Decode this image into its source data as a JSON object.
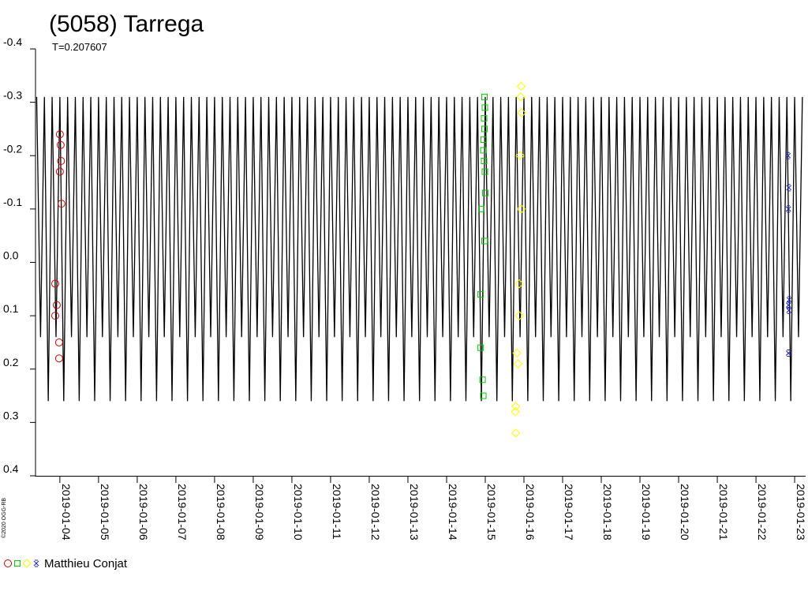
{
  "chart_data": {
    "type": "lightcurve",
    "title": "(5058) Tarrega",
    "subtitle": "T=0.207607",
    "credit": "©2020 OGG-RB",
    "observer": "Matthieu Conjat",
    "ylim": [
      -0.4,
      0.4
    ],
    "y_inverted": true,
    "yticks": [
      -0.4,
      -0.3,
      -0.2,
      -0.1,
      {
        "value": 0,
        "label": "0.0"
      },
      0.1,
      0.2,
      0.3,
      0.4
    ],
    "xlim": [
      3.37,
      23.27
    ],
    "xticks": [
      {
        "value": 4,
        "label": "2019-01-04"
      },
      {
        "value": 5,
        "label": "2019-01-05"
      },
      {
        "value": 6,
        "label": "2019-01-06"
      },
      {
        "value": 7,
        "label": "2019-01-07"
      },
      {
        "value": 8,
        "label": "2019-01-08"
      },
      {
        "value": 9,
        "label": "2019-01-09"
      },
      {
        "value": 10,
        "label": "2019-01-10"
      },
      {
        "value": 11,
        "label": "2019-01-11"
      },
      {
        "value": 12,
        "label": "2019-01-12"
      },
      {
        "value": 13,
        "label": "2019-01-13"
      },
      {
        "value": 14,
        "label": "2019-01-14"
      },
      {
        "value": 15,
        "label": "2019-01-15"
      },
      {
        "value": 16,
        "label": "2019-01-16"
      },
      {
        "value": 17,
        "label": "2019-01-17"
      },
      {
        "value": 18,
        "label": "2019-01-18"
      },
      {
        "value": 19,
        "label": "2019-01-19"
      },
      {
        "value": 20,
        "label": "2019-01-20"
      },
      {
        "value": 21,
        "label": "2019-01-21"
      },
      {
        "value": 22,
        "label": "2019-01-22"
      },
      {
        "value": 23,
        "label": "2019-01-23"
      }
    ],
    "curve": {
      "color": "#000000",
      "x": [
        3.4,
        3.5,
        3.6,
        3.7,
        3.8,
        3.9,
        4.0,
        4.1,
        4.2,
        4.3,
        4.4,
        4.5,
        4.6,
        4.7,
        4.8,
        4.9,
        5.0,
        5.1,
        5.2,
        5.3,
        5.4,
        5.5,
        5.6,
        5.7,
        5.8,
        5.9,
        6.0,
        6.1,
        6.2,
        6.3,
        6.4,
        6.5,
        6.6,
        6.7,
        6.8,
        6.9,
        7.0,
        7.1,
        7.2,
        7.3,
        7.4,
        7.5,
        7.6,
        7.7,
        7.8,
        7.9,
        8.0,
        8.1,
        8.2,
        8.3,
        8.4,
        8.5,
        8.6,
        8.7,
        8.8,
        8.9,
        9.0,
        9.1,
        9.2,
        9.3,
        9.4,
        9.5,
        9.6,
        9.7,
        9.8,
        9.9,
        10.0,
        10.1,
        10.2,
        10.3,
        10.4,
        10.5,
        10.6,
        10.7,
        10.8,
        10.9,
        11.0,
        11.1,
        11.2,
        11.3,
        11.4,
        11.5,
        11.6,
        11.7,
        11.8,
        11.9,
        12.0,
        12.1,
        12.2,
        12.3,
        12.4,
        12.5,
        12.6,
        12.7,
        12.8,
        12.9,
        13.0,
        13.1,
        13.2,
        13.3,
        13.4,
        13.5,
        13.6,
        13.7,
        13.8,
        13.9,
        14.0,
        14.1,
        14.2,
        14.3,
        14.4,
        14.5,
        14.6,
        14.7,
        14.8,
        14.9,
        15.0,
        15.1,
        15.2,
        15.3,
        15.4,
        15.5,
        15.6,
        15.7,
        15.8,
        15.9,
        16.0,
        16.1,
        16.2,
        16.3,
        16.4,
        16.5,
        16.6,
        16.7,
        16.8,
        16.9,
        17.0,
        17.1,
        17.2,
        17.3,
        17.4,
        17.5,
        17.6,
        17.7,
        17.8,
        17.9,
        18.0,
        18.1,
        18.2,
        18.3,
        18.4,
        18.5,
        18.6,
        18.7,
        18.8,
        18.9,
        19.0,
        19.1,
        19.2,
        19.3,
        19.4,
        19.5,
        19.6,
        19.7,
        19.8,
        19.9,
        20.0,
        20.1,
        20.2,
        20.3,
        20.4,
        20.5,
        20.6,
        20.7,
        20.8,
        20.9,
        21.0,
        21.1,
        21.2,
        21.3,
        21.4,
        21.5,
        21.6,
        21.7,
        21.8,
        21.9,
        22.0,
        22.1,
        22.2,
        22.3,
        22.4,
        22.5,
        22.6,
        22.7,
        22.8,
        22.9,
        23.0,
        23.1,
        23.2
      ],
      "values": [
        -0.31,
        0.14,
        -0.31,
        0.26,
        -0.31,
        0.14,
        -0.31,
        0.26,
        -0.31,
        0.14,
        -0.31,
        0.26,
        -0.31,
        0.14,
        -0.31,
        0.26,
        -0.31,
        0.14,
        -0.31,
        0.26,
        -0.31,
        0.14,
        -0.31,
        0.26,
        -0.31,
        0.14,
        -0.31,
        0.26,
        -0.31,
        0.14,
        -0.31,
        0.26,
        -0.31,
        0.14,
        -0.31,
        0.26,
        -0.31,
        0.14,
        -0.31,
        0.26,
        -0.31,
        0.14,
        -0.31,
        0.26,
        -0.31,
        0.14,
        -0.31,
        0.26,
        -0.31,
        0.14,
        -0.31,
        0.26,
        -0.31,
        0.14,
        -0.31,
        0.26,
        -0.31,
        0.14,
        -0.31,
        0.26,
        -0.31,
        0.14,
        -0.31,
        0.26,
        -0.31,
        0.14,
        -0.31,
        0.26,
        -0.31,
        0.14,
        -0.31,
        0.26,
        -0.31,
        0.14,
        -0.31,
        0.26,
        -0.31,
        0.14,
        -0.31,
        0.26,
        -0.31,
        0.14,
        -0.31,
        0.26,
        -0.31,
        0.14,
        -0.31,
        0.26,
        -0.31,
        0.14,
        -0.31,
        0.26,
        -0.31,
        0.14,
        -0.31,
        0.26,
        -0.31,
        0.14,
        -0.31,
        0.26,
        -0.31,
        0.14,
        -0.31,
        0.26,
        -0.31,
        0.14,
        -0.31,
        0.26,
        -0.31,
        0.14,
        -0.31,
        0.26,
        -0.31,
        0.14,
        -0.31,
        0.26,
        -0.31,
        0.14,
        -0.31,
        0.26,
        -0.31,
        0.14,
        -0.31,
        0.26,
        -0.31,
        0.14,
        -0.31,
        0.26,
        -0.31,
        0.14,
        -0.31,
        0.26,
        -0.31,
        0.14,
        -0.31,
        0.26,
        -0.31,
        0.14,
        -0.31,
        0.26,
        -0.31,
        0.14,
        -0.31,
        0.26,
        -0.31,
        0.14,
        -0.31,
        0.26,
        -0.31,
        0.14,
        -0.31,
        0.26,
        -0.31,
        0.14,
        -0.31,
        0.26,
        -0.31,
        0.14,
        -0.31,
        0.26,
        -0.31,
        0.14,
        -0.31,
        0.26,
        -0.31,
        0.14,
        -0.31,
        0.26,
        -0.31,
        0.14,
        -0.31,
        0.26,
        -0.31,
        0.14,
        -0.31,
        0.26,
        -0.31,
        0.14,
        -0.31,
        0.26,
        -0.31,
        0.14,
        -0.31,
        0.26,
        -0.31,
        0.14,
        -0.31,
        0.26,
        -0.31,
        0.14,
        -0.31,
        0.26,
        -0.31,
        0.14,
        -0.31,
        0.26,
        -0.31,
        0.14,
        -0.31
      ]
    },
    "series": [
      {
        "color": "#cc0000",
        "marker": "circle",
        "x": [
          4.0,
          4.02,
          4.03,
          4.0,
          4.04,
          3.88,
          3.92,
          3.88,
          3.98,
          3.98
        ],
        "values": [
          -0.24,
          -0.22,
          -0.19,
          -0.17,
          -0.11,
          0.04,
          0.08,
          0.1,
          0.15,
          0.18
        ]
      },
      {
        "color": "#00cc00",
        "marker": "square",
        "x": [
          14.98,
          14.99,
          14.97,
          14.98,
          14.96,
          14.95,
          14.97,
          14.99,
          15.0,
          14.9,
          14.98,
          14.88,
          14.88,
          14.93,
          14.95
        ],
        "values": [
          -0.31,
          -0.29,
          -0.27,
          -0.25,
          -0.23,
          -0.21,
          -0.19,
          -0.17,
          -0.13,
          -0.1,
          -0.04,
          0.06,
          0.16,
          0.22,
          0.25
        ]
      },
      {
        "color": "#ffff00",
        "marker": "diamond",
        "x": [
          15.93,
          15.92,
          15.94,
          15.9,
          15.93,
          15.88,
          15.88,
          15.82,
          15.85,
          15.79,
          15.78,
          15.79
        ],
        "values": [
          -0.33,
          -0.31,
          -0.28,
          -0.2,
          -0.1,
          0.04,
          0.1,
          0.17,
          0.19,
          0.27,
          0.28,
          0.32
        ]
      },
      {
        "color": "#2222aa",
        "marker": "star",
        "x": [
          22.83,
          22.85,
          22.84,
          22.86,
          22.84,
          22.85,
          22.84
        ],
        "values": [
          -0.2,
          -0.14,
          -0.1,
          0.07,
          0.08,
          0.09,
          0.17
        ]
      }
    ]
  }
}
